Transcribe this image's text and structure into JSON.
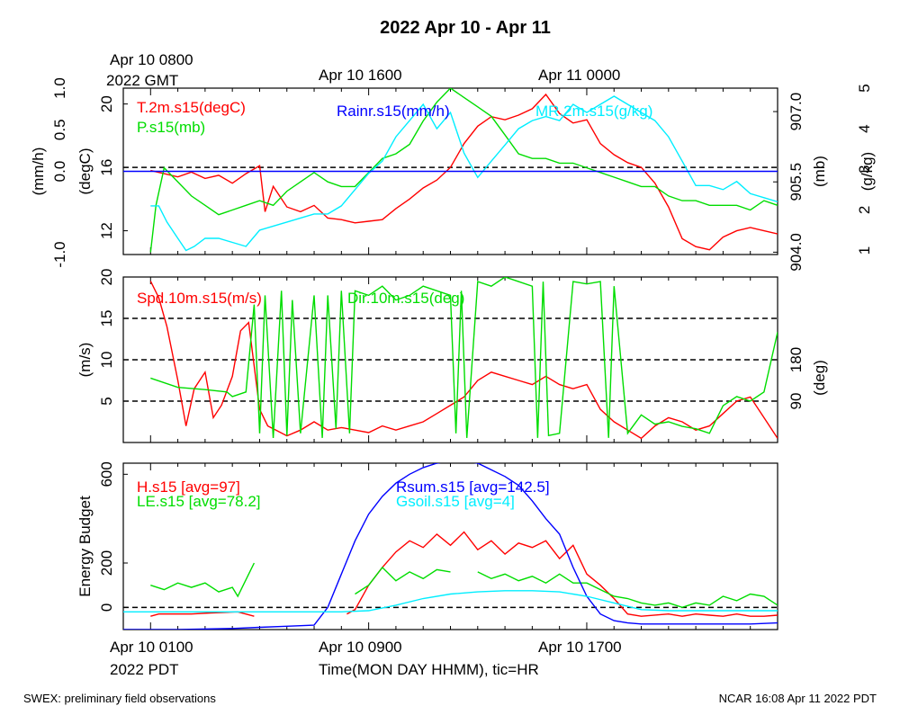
{
  "title": "2022 Apr 10 - Apr 11",
  "top_time": {
    "gmt_first_line": "Apr 10 0800",
    "gmt_second_line": "2022 GMT",
    "label_2": "Apr 10 1600",
    "label_3": "Apr 11 0000"
  },
  "bottom_time": {
    "label_1": "Apr 10 0100",
    "pdt": "2022 PDT",
    "label_2": "Apr 10 0900",
    "label_3": "Apr 10 1700",
    "xlabel": "Time(MON DAY HHMM), tic=HR"
  },
  "footer": {
    "left": "SWEX: preliminary field observations",
    "right": "NCAR 16:08 Apr 11 2022 PDT"
  },
  "colors": {
    "red": "#ff0000",
    "green": "#00dd00",
    "blue": "#0000ff",
    "cyan": "#00eeff",
    "black": "#000000"
  },
  "chart_data": [
    {
      "type": "line",
      "panel": "top",
      "x_unit": "hours since Apr 10 0000 PDT",
      "xlim": [
        0,
        24
      ],
      "axes": {
        "left_outer": {
          "label": "(mm/h)",
          "ylim": [
            -1.0,
            1.0
          ],
          "ticks": [
            "-1.0",
            "0.0",
            "0.5",
            "1.0"
          ],
          "tick_values": [
            -1.0,
            0.0,
            0.5,
            1.0
          ]
        },
        "left_inner": {
          "label": "(degC)",
          "ylim": [
            10.5,
            21
          ],
          "ticks": [
            "12",
            "16",
            "20"
          ],
          "tick_values": [
            12,
            16,
            20
          ]
        },
        "right_inner": {
          "label": "(mb)",
          "ylim": [
            903.95,
            907.5
          ],
          "ticks": [
            "904.0",
            "905.5",
            "907.0"
          ],
          "tick_values": [
            904.0,
            905.5,
            907.0
          ]
        },
        "right_outer": {
          "label": "(g/kg)",
          "ylim": [
            0.9,
            5
          ],
          "ticks": [
            "1",
            "2",
            "3",
            "4",
            "5"
          ],
          "tick_values": [
            1,
            2,
            3,
            4,
            5
          ]
        }
      },
      "reference_lines": [
        {
          "axis": "left_inner",
          "y": 16.0,
          "style": "dashed"
        }
      ],
      "series": [
        {
          "name": "T.2m.s15(degC)",
          "color": "red",
          "axis": "left_inner",
          "x": [
            1,
            1.5,
            2,
            2.5,
            3,
            3.5,
            4,
            4.5,
            5,
            5.2,
            5.5,
            6,
            6.5,
            7,
            7.5,
            8,
            8.5,
            9,
            9.5,
            10,
            10.5,
            11,
            11.5,
            12,
            12.5,
            13,
            13.5,
            14,
            14.5,
            15,
            15.5,
            16,
            16.5,
            17,
            17.5,
            18,
            18.5,
            19,
            19.5,
            20,
            20.5,
            21,
            21.5,
            22,
            22.5,
            23,
            23.5,
            24
          ],
          "y": [
            15.8,
            15.6,
            15.4,
            15.7,
            15.3,
            15.5,
            15.0,
            15.6,
            16.1,
            13.2,
            14.8,
            13.5,
            13.2,
            13.6,
            12.8,
            12.7,
            12.5,
            12.6,
            12.7,
            13.4,
            14.0,
            14.7,
            15.2,
            16.0,
            17.5,
            18.6,
            19.2,
            19.0,
            19.3,
            19.7,
            20.6,
            19.4,
            18.8,
            19.0,
            17.5,
            16.8,
            16.3,
            16.0,
            15.0,
            13.5,
            11.5,
            11.0,
            10.8,
            11.6,
            12.0,
            12.2,
            12.0,
            11.8
          ]
        },
        {
          "name": "P.s15(mb)",
          "color": "green",
          "axis": "right_inner",
          "x": [
            1,
            1.2,
            1.5,
            2,
            2.5,
            3,
            3.5,
            4,
            4.5,
            5,
            5.5,
            6,
            6.5,
            7,
            7.5,
            8,
            8.5,
            9,
            9.5,
            10,
            10.5,
            11,
            11.5,
            12,
            12.5,
            13,
            13.5,
            14,
            14.5,
            15,
            15.5,
            16,
            16.5,
            17,
            17.5,
            18,
            18.5,
            19,
            19.5,
            20,
            20.5,
            21,
            21.5,
            22,
            22.5,
            23,
            23.5,
            24
          ],
          "y": [
            904.0,
            905.0,
            905.8,
            905.5,
            905.2,
            905.0,
            904.8,
            904.9,
            905.0,
            905.1,
            905.0,
            905.3,
            905.5,
            905.7,
            905.5,
            905.4,
            905.4,
            905.7,
            906.0,
            906.1,
            906.3,
            906.8,
            907.2,
            907.5,
            907.3,
            907.1,
            906.9,
            906.5,
            906.1,
            906.0,
            906.0,
            905.9,
            905.9,
            905.8,
            905.7,
            905.6,
            905.5,
            905.4,
            905.4,
            905.2,
            905.1,
            905.1,
            905.0,
            905.0,
            905.0,
            904.9,
            905.1,
            905.0
          ]
        },
        {
          "name": "MR.2m.s15(g/kg)",
          "color": "cyan",
          "axis": "right_outer",
          "x": [
            1,
            1.3,
            1.6,
            2,
            2.3,
            2.6,
            3,
            3.5,
            4,
            4.5,
            5,
            5.5,
            6,
            6.5,
            7,
            7.5,
            8,
            8.5,
            9,
            9.5,
            10,
            10.5,
            11,
            11.5,
            12,
            12.5,
            13,
            13.5,
            14,
            14.5,
            15,
            15.5,
            16,
            16.5,
            17,
            17.5,
            18,
            18.5,
            19,
            19.5,
            20,
            20.5,
            21,
            21.5,
            22,
            22.5,
            23,
            23.5,
            24
          ],
          "y": [
            2.1,
            2.1,
            1.7,
            1.3,
            1.0,
            1.1,
            1.3,
            1.3,
            1.2,
            1.1,
            1.5,
            1.6,
            1.7,
            1.8,
            1.9,
            1.9,
            2.1,
            2.5,
            2.9,
            3.2,
            3.8,
            4.2,
            4.6,
            4.0,
            4.4,
            3.4,
            2.8,
            3.2,
            3.6,
            4.0,
            4.2,
            4.3,
            4.2,
            4.6,
            4.4,
            4.6,
            4.8,
            4.6,
            4.4,
            4.2,
            3.8,
            3.2,
            2.6,
            2.6,
            2.5,
            2.7,
            2.4,
            2.3,
            2.2
          ]
        },
        {
          "name": "Rainr.s15(mm/h)",
          "color": "blue",
          "axis": "left_outer",
          "x": [
            0,
            24
          ],
          "y": [
            0,
            0
          ]
        }
      ]
    },
    {
      "type": "line",
      "panel": "middle",
      "x_unit": "hours since Apr 10 0000 PDT",
      "xlim": [
        0,
        24
      ],
      "axes": {
        "left": {
          "label": "(m/s)",
          "ylim": [
            0,
            20
          ],
          "ticks": [
            "5",
            "10",
            "15",
            "20"
          ],
          "tick_values": [
            5,
            10,
            15,
            20
          ]
        },
        "right": {
          "label": "(deg)",
          "ylim": [
            0,
            360
          ],
          "ticks": [
            "90",
            "180"
          ],
          "tick_values": [
            90,
            180
          ]
        }
      },
      "reference_lines": [
        {
          "axis": "left",
          "y": 5,
          "style": "dashed"
        },
        {
          "axis": "left",
          "y": 10,
          "style": "dashed"
        },
        {
          "axis": "left",
          "y": 15,
          "style": "dashed"
        }
      ],
      "series": [
        {
          "name": "Spd.10m.s15(m/s)",
          "color": "red",
          "axis": "left",
          "x": [
            1,
            1.3,
            1.6,
            2,
            2.3,
            2.6,
            3,
            3.3,
            3.6,
            4,
            4.3,
            4.6,
            5,
            5.3,
            5.6,
            6,
            6.5,
            7,
            7.5,
            8,
            8.5,
            9,
            9.5,
            10,
            10.5,
            11,
            11.5,
            12,
            12.5,
            13,
            13.5,
            14,
            14.5,
            15,
            15.5,
            16,
            16.5,
            17,
            17.5,
            18,
            18.5,
            19,
            19.5,
            20,
            20.5,
            21,
            21.5,
            22,
            22.5,
            23,
            23.5,
            24
          ],
          "y": [
            19.5,
            17.5,
            14.0,
            7.5,
            2.0,
            6.5,
            8.5,
            3.0,
            4.5,
            8.0,
            13.5,
            14.5,
            4.0,
            2.0,
            1.5,
            0.8,
            1.5,
            2.5,
            1.5,
            1.8,
            1.5,
            1.2,
            2.0,
            1.5,
            2.0,
            2.5,
            3.5,
            4.5,
            5.5,
            7.5,
            8.5,
            8.0,
            7.5,
            7.0,
            8.0,
            7.0,
            6.5,
            7.0,
            4.0,
            2.5,
            1.5,
            0.5,
            2.0,
            3.0,
            2.5,
            1.5,
            2.0,
            3.5,
            5.0,
            5.5,
            3.0,
            0.5
          ]
        },
        {
          "name": "Dir.10m.s15(deg)",
          "color": "green",
          "axis": "right",
          "x": [
            1,
            2,
            3,
            3.8,
            4,
            4.5,
            4.8,
            5,
            5.2,
            5.5,
            5.8,
            6,
            6.2,
            6.5,
            7,
            7.3,
            7.5,
            7.8,
            8,
            8.3,
            8.5,
            9,
            9.5,
            10,
            10.5,
            11,
            11.5,
            12,
            12.2,
            12.4,
            12.6,
            13,
            13.5,
            14,
            14.5,
            15,
            15.2,
            15.4,
            15.6,
            16,
            16.5,
            17,
            17.5,
            17.8,
            18,
            18.5,
            19,
            19.5,
            20,
            20.5,
            21,
            21.5,
            22,
            22.5,
            23,
            23.5,
            24
          ],
          "y": [
            140,
            120,
            115,
            110,
            100,
            110,
            300,
            20,
            320,
            10,
            330,
            15,
            310,
            20,
            320,
            10,
            320,
            30,
            330,
            20,
            330,
            320,
            340,
            310,
            320,
            340,
            330,
            320,
            20,
            330,
            10,
            350,
            340,
            360,
            350,
            340,
            10,
            350,
            15,
            20,
            350,
            345,
            350,
            10,
            340,
            20,
            60,
            40,
            45,
            35,
            30,
            20,
            80,
            100,
            90,
            110,
            240
          ]
        }
      ]
    },
    {
      "type": "line",
      "panel": "bottom",
      "x_unit": "hours since Apr 10 0000 PDT",
      "xlim": [
        0,
        24
      ],
      "axes": {
        "left": {
          "label": "Energy Budget",
          "ylim": [
            -100,
            650
          ],
          "ticks": [
            "0",
            "200",
            "600"
          ],
          "tick_values": [
            0,
            200,
            600
          ]
        }
      },
      "reference_lines": [
        {
          "axis": "left",
          "y": 0,
          "style": "dashed"
        }
      ],
      "series": [
        {
          "name": "H.s15 [avg=97]",
          "color": "red",
          "axis": "left",
          "x": [
            1,
            1.3,
            1.8,
            2.5,
            3.2,
            4.2,
            4.8,
            5,
            5.3,
            5.6,
            6,
            7,
            8,
            8.2,
            8.5,
            9,
            9.5,
            10,
            10.5,
            11,
            11.5,
            12,
            12.5,
            13,
            13.5,
            14,
            14.5,
            15,
            15.5,
            16,
            16.5,
            17,
            17.5,
            18,
            18.5,
            19,
            20,
            20.5,
            21,
            21.5,
            22,
            22.5,
            23,
            23.5,
            24
          ],
          "y": [
            -40,
            -30,
            -30,
            -30,
            -25,
            -20,
            -40,
            null,
            null,
            null,
            null,
            null,
            null,
            -30,
            -10,
            100,
            180,
            250,
            300,
            270,
            330,
            280,
            340,
            260,
            300,
            240,
            290,
            270,
            300,
            220,
            280,
            150,
            100,
            40,
            -30,
            -40,
            -30,
            -40,
            -30,
            -35,
            -40,
            -30,
            -40,
            -40,
            -35
          ]
        },
        {
          "name": "LE.s15 [avg=78.2]",
          "color": "green",
          "axis": "left",
          "x": [
            1,
            1.5,
            2,
            2.5,
            3,
            3.5,
            4,
            4.2,
            4.8,
            5,
            6,
            7,
            7.6,
            8,
            8.5,
            9,
            9.5,
            10,
            10.5,
            11,
            11.5,
            12,
            12.5,
            13,
            13.5,
            14,
            14.5,
            15,
            15.5,
            16,
            16.5,
            17,
            17.5,
            18,
            18.5,
            19,
            19.5,
            20,
            20.5,
            21,
            21.5,
            22,
            22.5,
            23,
            23.5,
            24
          ],
          "y": [
            100,
            80,
            110,
            90,
            110,
            70,
            90,
            50,
            200,
            null,
            null,
            null,
            60,
            null,
            60,
            100,
            180,
            120,
            160,
            130,
            170,
            160,
            null,
            160,
            130,
            150,
            120,
            140,
            110,
            150,
            110,
            110,
            80,
            50,
            40,
            20,
            10,
            20,
            0,
            20,
            10,
            50,
            30,
            60,
            50,
            10
          ]
        },
        {
          "name": "Rsum.s15 [avg=142.5]",
          "color": "blue",
          "axis": "left",
          "x": [
            0,
            2,
            4,
            5,
            6,
            7,
            7.5,
            8,
            8.5,
            9,
            9.5,
            10,
            10.5,
            11,
            11.5,
            12,
            12.5,
            13,
            13.5,
            14,
            14.5,
            15,
            15.5,
            16,
            16.5,
            17,
            17.5,
            18,
            18.5,
            19,
            20,
            21,
            22,
            23,
            24
          ],
          "y": [
            -100,
            -100,
            -95,
            -90,
            -85,
            -80,
            0,
            150,
            300,
            420,
            500,
            560,
            600,
            630,
            650,
            660,
            660,
            650,
            620,
            590,
            550,
            480,
            400,
            330,
            180,
            50,
            -30,
            -60,
            -70,
            -75,
            -75,
            -75,
            -75,
            -75,
            -70
          ]
        },
        {
          "name": "Gsoil.s15 [avg=4]",
          "color": "cyan",
          "axis": "left",
          "x": [
            0,
            2,
            4,
            6,
            8,
            9,
            10,
            11,
            12,
            13,
            14,
            15,
            16,
            17,
            18,
            19,
            20,
            22,
            24
          ],
          "y": [
            -20,
            -20,
            -20,
            -20,
            -20,
            -15,
            10,
            40,
            60,
            70,
            75,
            75,
            70,
            50,
            20,
            -10,
            -15,
            -15,
            -15
          ]
        }
      ]
    }
  ]
}
